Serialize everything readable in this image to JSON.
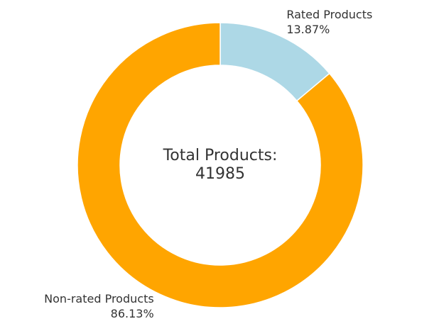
{
  "chart_data": {
    "type": "pie",
    "categories": [
      "Rated Products",
      "Non-rated Products"
    ],
    "values": [
      13.87,
      86.13
    ],
    "value_labels": [
      "13.87%",
      "86.13%"
    ],
    "colors": [
      "#add8e6",
      "#ffa500"
    ],
    "center_label": "Total Products:",
    "total": 41985
  }
}
